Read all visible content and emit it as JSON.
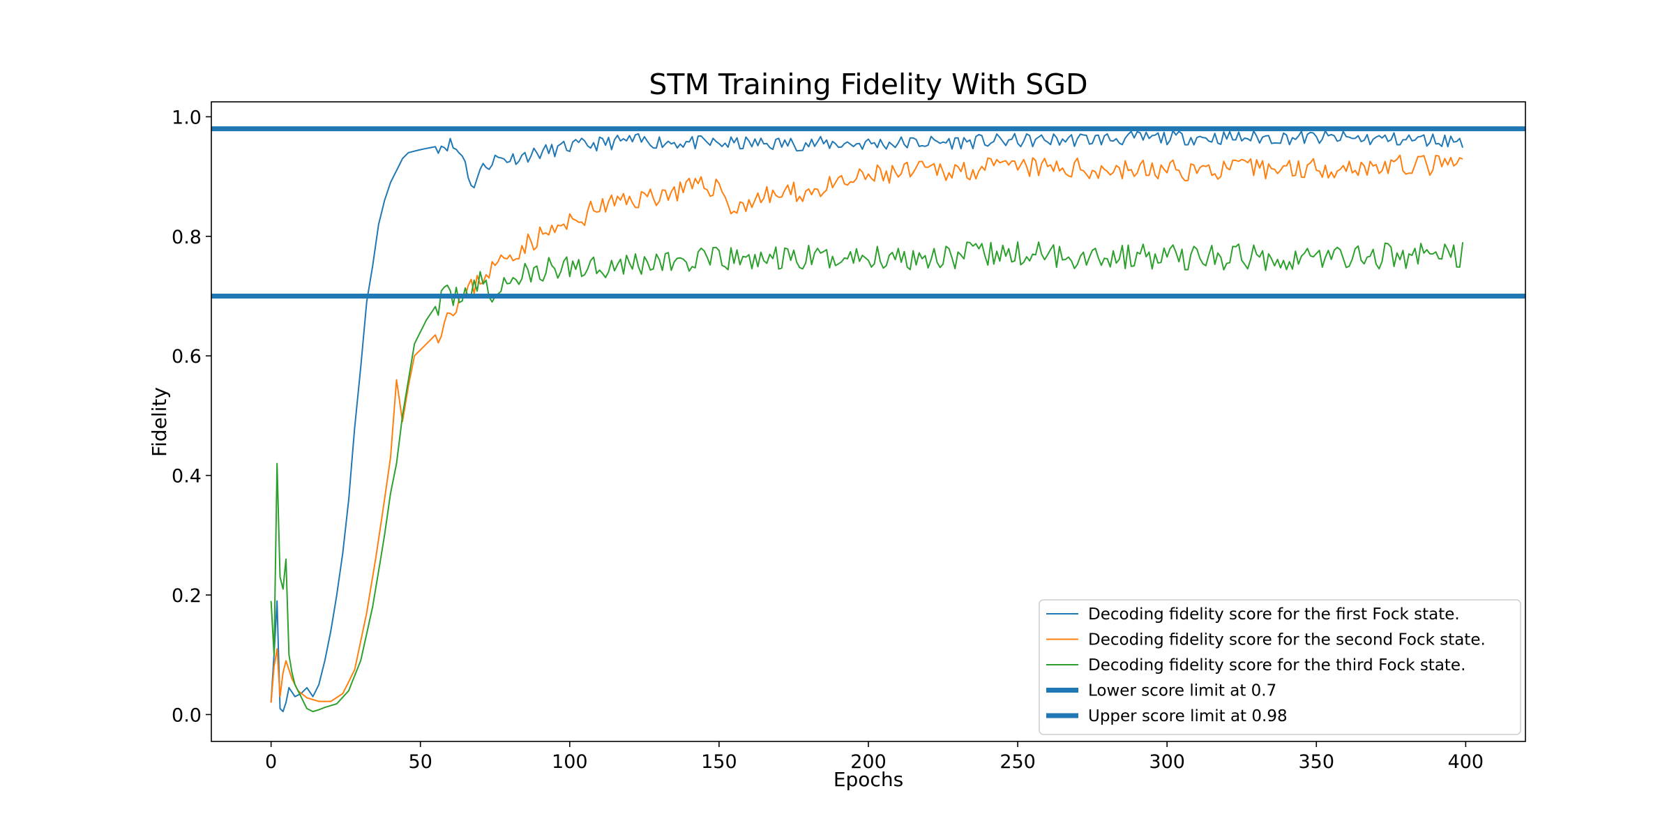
{
  "chart_data": {
    "type": "line",
    "title": "STM Training Fidelity With SGD",
    "xlabel": "Epochs",
    "ylabel": "Fidelity",
    "xlim": [
      -20,
      420
    ],
    "ylim": [
      -0.045,
      1.025
    ],
    "xticks": [
      0,
      50,
      100,
      150,
      200,
      250,
      300,
      350,
      400
    ],
    "xtick_labels": [
      "0",
      "50",
      "100",
      "150",
      "200",
      "250",
      "300",
      "350",
      "400"
    ],
    "yticks": [
      0.0,
      0.2,
      0.4,
      0.6,
      0.8,
      1.0
    ],
    "ytick_labels": [
      "0.0",
      "0.2",
      "0.4",
      "0.6",
      "0.8",
      "1.0"
    ],
    "grid": false,
    "legend_position": "lower-right",
    "epochs": {
      "start": 0,
      "end": 399,
      "step": 1
    },
    "series": [
      {
        "name": "Decoding fidelity score for the first Fock state.",
        "color": "#1f77b4",
        "line_width": "thin",
        "keypoints": [
          [
            0,
            0.02
          ],
          [
            1,
            0.1
          ],
          [
            2,
            0.19
          ],
          [
            3,
            0.01
          ],
          [
            4,
            0.005
          ],
          [
            5,
            0.02
          ],
          [
            6,
            0.045
          ],
          [
            8,
            0.03
          ],
          [
            10,
            0.035
          ],
          [
            12,
            0.045
          ],
          [
            14,
            0.03
          ],
          [
            16,
            0.05
          ],
          [
            18,
            0.09
          ],
          [
            20,
            0.14
          ],
          [
            22,
            0.2
          ],
          [
            24,
            0.27
          ],
          [
            26,
            0.36
          ],
          [
            28,
            0.48
          ],
          [
            30,
            0.58
          ],
          [
            32,
            0.69
          ],
          [
            34,
            0.75
          ],
          [
            36,
            0.82
          ],
          [
            38,
            0.86
          ],
          [
            40,
            0.89
          ],
          [
            42,
            0.91
          ],
          [
            44,
            0.93
          ],
          [
            46,
            0.94
          ],
          [
            50,
            0.945
          ],
          [
            55,
            0.95
          ],
          [
            60,
            0.955
          ],
          [
            65,
            0.93
          ],
          [
            67,
            0.88
          ],
          [
            70,
            0.91
          ],
          [
            75,
            0.93
          ],
          [
            80,
            0.93
          ],
          [
            90,
            0.94
          ],
          [
            100,
            0.95
          ],
          [
            120,
            0.96
          ],
          [
            150,
            0.955
          ],
          [
            200,
            0.955
          ],
          [
            250,
            0.96
          ],
          [
            300,
            0.965
          ],
          [
            350,
            0.965
          ],
          [
            399,
            0.96
          ]
        ],
        "noise": 0.012,
        "seed": 11
      },
      {
        "name": "Decoding fidelity score for the second Fock state.",
        "color": "#ff7f0e",
        "line_width": "thin",
        "keypoints": [
          [
            0,
            0.02
          ],
          [
            1,
            0.08
          ],
          [
            2,
            0.11
          ],
          [
            3,
            0.03
          ],
          [
            4,
            0.07
          ],
          [
            5,
            0.09
          ],
          [
            7,
            0.06
          ],
          [
            9,
            0.04
          ],
          [
            12,
            0.028
          ],
          [
            16,
            0.022
          ],
          [
            20,
            0.022
          ],
          [
            24,
            0.035
          ],
          [
            28,
            0.075
          ],
          [
            32,
            0.17
          ],
          [
            35,
            0.26
          ],
          [
            38,
            0.36
          ],
          [
            40,
            0.43
          ],
          [
            42,
            0.56
          ],
          [
            44,
            0.49
          ],
          [
            46,
            0.55
          ],
          [
            48,
            0.6
          ],
          [
            52,
            0.62
          ],
          [
            56,
            0.64
          ],
          [
            60,
            0.68
          ],
          [
            65,
            0.7
          ],
          [
            70,
            0.73
          ],
          [
            75,
            0.75
          ],
          [
            80,
            0.77
          ],
          [
            90,
            0.8
          ],
          [
            100,
            0.82
          ],
          [
            110,
            0.85
          ],
          [
            120,
            0.86
          ],
          [
            130,
            0.87
          ],
          [
            140,
            0.88
          ],
          [
            150,
            0.885
          ],
          [
            155,
            0.84
          ],
          [
            160,
            0.86
          ],
          [
            170,
            0.87
          ],
          [
            180,
            0.875
          ],
          [
            190,
            0.885
          ],
          [
            200,
            0.9
          ],
          [
            220,
            0.91
          ],
          [
            250,
            0.915
          ],
          [
            300,
            0.91
          ],
          [
            350,
            0.915
          ],
          [
            399,
            0.92
          ]
        ],
        "noise": 0.018,
        "seed": 23
      },
      {
        "name": "Decoding fidelity score for the third Fock state.",
        "color": "#2ca02c",
        "line_width": "thin",
        "keypoints": [
          [
            0,
            0.19
          ],
          [
            1,
            0.1
          ],
          [
            2,
            0.42
          ],
          [
            3,
            0.23
          ],
          [
            4,
            0.21
          ],
          [
            5,
            0.26
          ],
          [
            6,
            0.1
          ],
          [
            7,
            0.07
          ],
          [
            8,
            0.05
          ],
          [
            10,
            0.03
          ],
          [
            12,
            0.01
          ],
          [
            14,
            0.005
          ],
          [
            16,
            0.008
          ],
          [
            18,
            0.012
          ],
          [
            22,
            0.018
          ],
          [
            26,
            0.04
          ],
          [
            30,
            0.09
          ],
          [
            34,
            0.18
          ],
          [
            38,
            0.3
          ],
          [
            40,
            0.37
          ],
          [
            42,
            0.42
          ],
          [
            44,
            0.5
          ],
          [
            46,
            0.56
          ],
          [
            48,
            0.62
          ],
          [
            52,
            0.66
          ],
          [
            56,
            0.69
          ],
          [
            60,
            0.7
          ],
          [
            65,
            0.71
          ],
          [
            70,
            0.72
          ],
          [
            75,
            0.7
          ],
          [
            80,
            0.73
          ],
          [
            90,
            0.74
          ],
          [
            100,
            0.75
          ],
          [
            120,
            0.755
          ],
          [
            150,
            0.76
          ],
          [
            200,
            0.765
          ],
          [
            250,
            0.77
          ],
          [
            300,
            0.765
          ],
          [
            350,
            0.765
          ],
          [
            399,
            0.77
          ]
        ],
        "noise": 0.022,
        "seed": 37
      },
      {
        "name": "Lower score limit at 0.7",
        "color": "#1f77b4",
        "line_width": "thick",
        "y": 0.7
      },
      {
        "name": "Upper score limit at 0.98",
        "color": "#1f77b4",
        "line_width": "thick",
        "y": 0.98
      }
    ]
  }
}
